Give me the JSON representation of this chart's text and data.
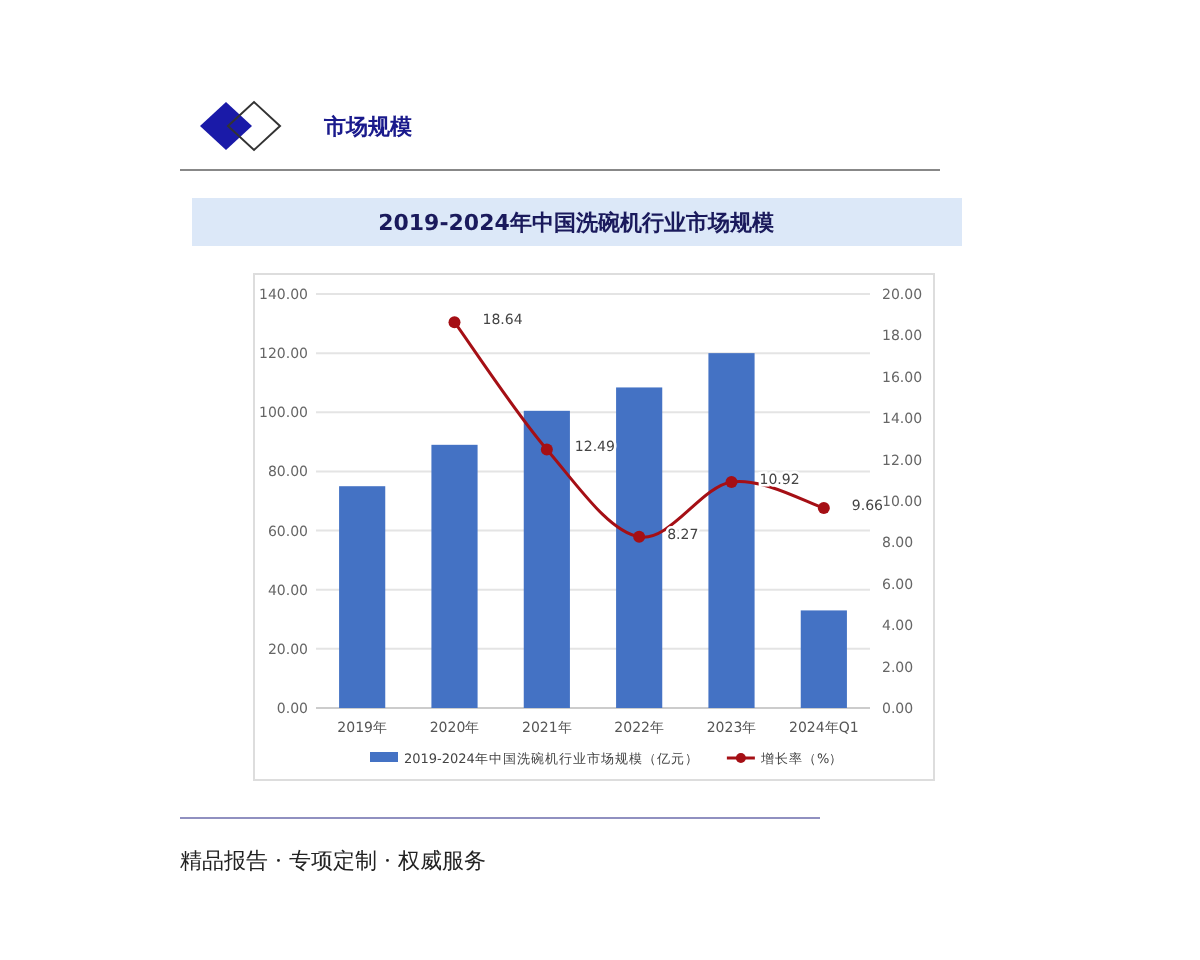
{
  "chart_data": {
    "type": "bar",
    "title": "2019-2024年中国洗碗机行业市场规模",
    "subtitle": "市场规模",
    "annotations": [
      "精品报告 · 专项定制 · 权威服务"
    ],
    "categories": [
      "2019年",
      "2020年",
      "2021年",
      "2022年",
      "2023年",
      "2024年Q1"
    ],
    "series": [
      {
        "name": "2019-2024年中国洗碗机行业市场规模（亿元）",
        "type": "bar",
        "color": "#4472c4",
        "values": [
          75,
          89,
          100.5,
          108.4,
          120,
          33
        ]
      },
      {
        "name": "增长率（%）",
        "type": "line",
        "axis": "y2",
        "color": "#a50f15",
        "values": [
          null,
          18.64,
          12.49,
          8.27,
          10.92,
          9.66
        ],
        "value_labels": [
          null,
          "18.64",
          "12.49",
          "8.27",
          "10.92",
          "9.66"
        ]
      }
    ],
    "ylim": [
      0,
      140
    ],
    "yticks": [
      {
        "value": 0,
        "label": "0.00"
      },
      {
        "value": 20,
        "label": "20.00"
      },
      {
        "value": 40,
        "label": "40.00"
      },
      {
        "value": 60,
        "label": "60.00"
      },
      {
        "value": 80,
        "label": "80.00"
      },
      {
        "value": 100,
        "label": "100.00"
      },
      {
        "value": 120,
        "label": "120.00"
      },
      {
        "value": 140,
        "label": "140.00"
      }
    ],
    "y2lim": [
      0,
      20
    ],
    "y2ticks": [
      {
        "value": 0,
        "label": "0.00"
      },
      {
        "value": 2,
        "label": "2.00"
      },
      {
        "value": 4,
        "label": "4.00"
      },
      {
        "value": 6,
        "label": "6.00"
      },
      {
        "value": 8,
        "label": "8.00"
      },
      {
        "value": 10,
        "label": "10.00"
      },
      {
        "value": 12,
        "label": "12.00"
      },
      {
        "value": 14,
        "label": "14.00"
      },
      {
        "value": 16,
        "label": "16.00"
      },
      {
        "value": 18,
        "label": "18.00"
      },
      {
        "value": 20,
        "label": "20.00"
      }
    ],
    "grid": "y",
    "legend": "bottom",
    "marker": "circle",
    "line_style": "solid"
  }
}
